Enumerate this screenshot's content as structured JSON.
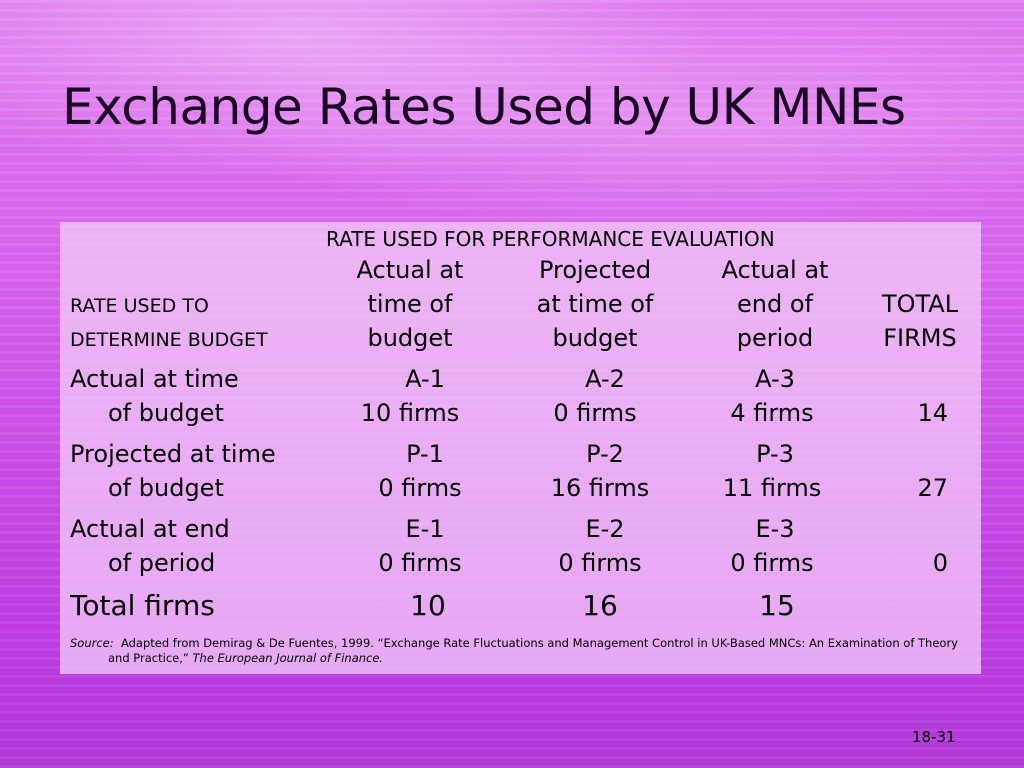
{
  "title": "Exchange Rates Used by UK MNEs",
  "table": {
    "header_top": "RATE USED FOR PERFORMANCE EVALUATION",
    "row_header": [
      "RATE USED TO",
      "DETERMINE BUDGET"
    ],
    "columns": [
      [
        "Actual at",
        "time of",
        "budget"
      ],
      [
        "Projected",
        "at time of",
        "budget"
      ],
      [
        "Actual at",
        "end of",
        "period"
      ],
      [
        "TOTAL",
        "FIRMS"
      ]
    ],
    "rows": [
      {
        "label": [
          "Actual at time",
          "of budget"
        ],
        "codes": [
          "A-1",
          "A-2",
          "A-3"
        ],
        "counts": [
          "10 firms",
          "0 firms",
          "4 firms"
        ],
        "total": "14"
      },
      {
        "label": [
          "Projected at time",
          "of budget"
        ],
        "codes": [
          "P-1",
          "P-2",
          "P-3"
        ],
        "counts": [
          "0 firms",
          "16 firms",
          "11 firms"
        ],
        "total": "27"
      },
      {
        "label": [
          "Actual at end",
          "of period"
        ],
        "codes": [
          "E-1",
          "E-2",
          "E-3"
        ],
        "counts": [
          "0 firms",
          "0 firms",
          "0 firms"
        ],
        "total": "0"
      }
    ],
    "totals": {
      "label": "Total firms",
      "values": [
        "10",
        "16",
        "15"
      ]
    }
  },
  "source": {
    "label": "Source:",
    "text1": "Adapted from Demirag & De Fuentes, 1999. “Exchange Rate Fluctuations and Management Control in UK-Based MNCs:  An Examination of Theory",
    "text2": "and Practice,”",
    "journal": "The European Journal of Finance."
  },
  "page_number": "18-31"
}
